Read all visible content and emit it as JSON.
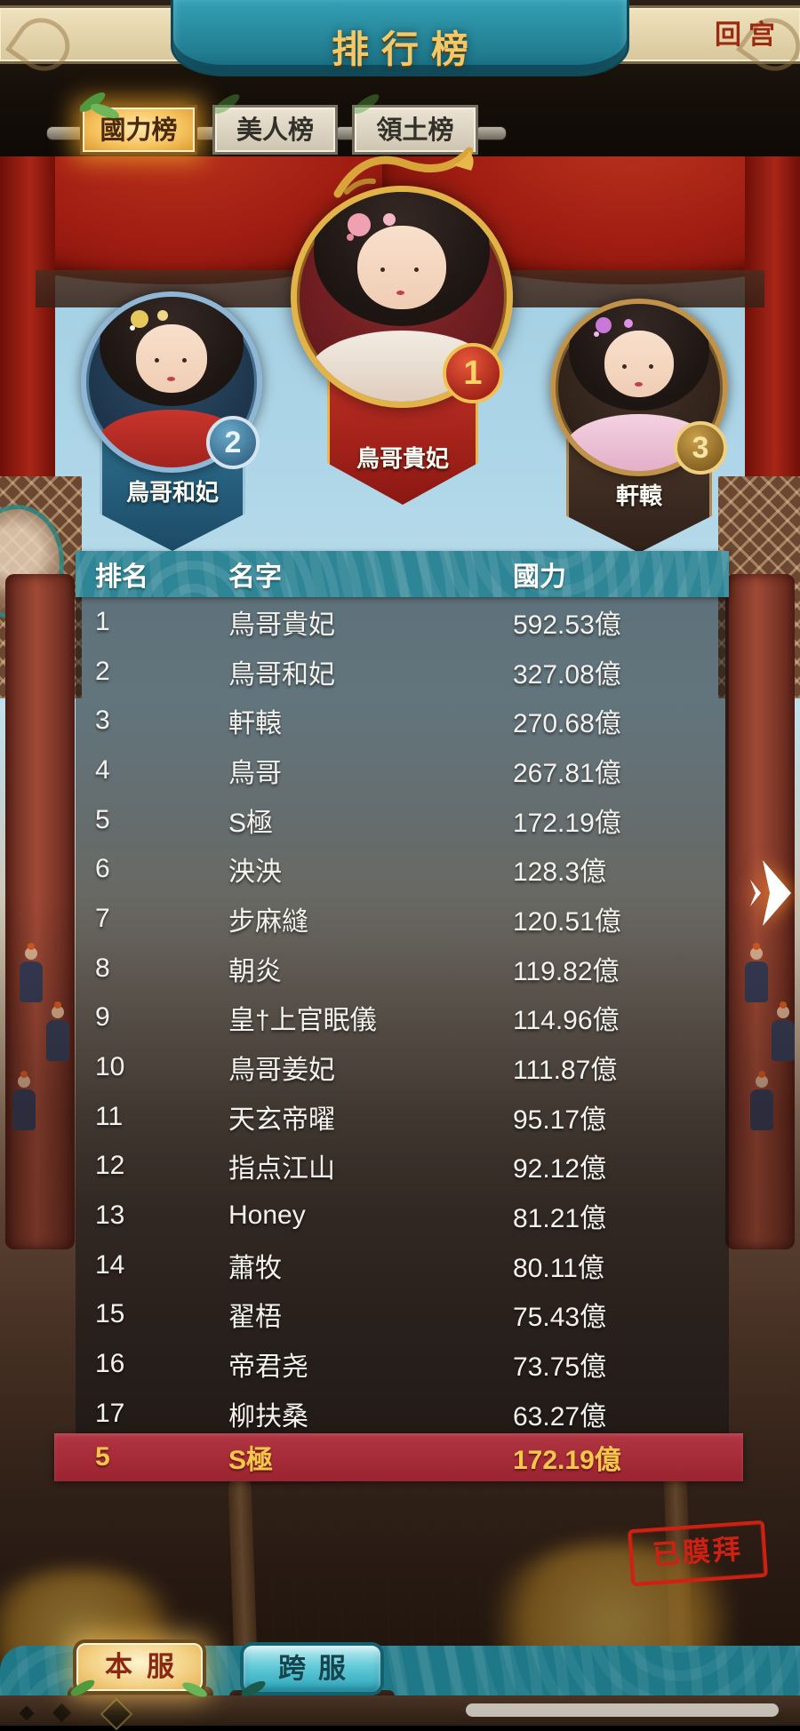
{
  "header": {
    "title": "排行榜",
    "back_button": "回宫"
  },
  "tabs": [
    {
      "label": "國力榜",
      "active": true
    },
    {
      "label": "美人榜",
      "active": false
    },
    {
      "label": "領土榜",
      "active": false
    }
  ],
  "podium": [
    {
      "rank": "1",
      "name": "鳥哥貴妃"
    },
    {
      "rank": "2",
      "name": "鳥哥和妃"
    },
    {
      "rank": "3",
      "name": "軒轅"
    }
  ],
  "table": {
    "columns": [
      "排名",
      "名字",
      "國力"
    ],
    "rows": [
      {
        "rank": "1",
        "name": "鳥哥貴妃",
        "power": "592.53億"
      },
      {
        "rank": "2",
        "name": "鳥哥和妃",
        "power": "327.08億"
      },
      {
        "rank": "3",
        "name": "軒轅",
        "power": "270.68億"
      },
      {
        "rank": "4",
        "name": "鳥哥",
        "power": "267.81億"
      },
      {
        "rank": "5",
        "name": "S極",
        "power": "172.19億"
      },
      {
        "rank": "6",
        "name": "泱泱",
        "power": "128.3億"
      },
      {
        "rank": "7",
        "name": "步麻縫",
        "power": "120.51億"
      },
      {
        "rank": "8",
        "name": "朝炎",
        "power": "119.82億"
      },
      {
        "rank": "9",
        "name": "皇†上官眠儀",
        "power": "114.96億"
      },
      {
        "rank": "10",
        "name": "鳥哥姜妃",
        "power": "111.87億"
      },
      {
        "rank": "11",
        "name": "天玄帝曜",
        "power": "95.17億"
      },
      {
        "rank": "12",
        "name": "指点江山",
        "power": "92.12億"
      },
      {
        "rank": "13",
        "name": "Honey",
        "power": "81.21億"
      },
      {
        "rank": "14",
        "name": "蕭牧",
        "power": "80.11億"
      },
      {
        "rank": "15",
        "name": "翟梧",
        "power": "75.43億"
      },
      {
        "rank": "16",
        "name": "帝君尧",
        "power": "73.75億"
      },
      {
        "rank": "17",
        "name": "柳扶桑",
        "power": "63.27億"
      }
    ]
  },
  "my_rank": {
    "rank": "5",
    "name": "S極",
    "power": "172.19億"
  },
  "stamp": "已膜拜",
  "bottom_tabs": [
    {
      "label": "本服",
      "active": true
    },
    {
      "label": "跨服",
      "active": false
    }
  ],
  "colors": {
    "accent_gold": "#f2c968",
    "banner_teal": "#2e8596",
    "highlight_red": "#a82a34",
    "highlight_text": "#f8c84a",
    "stamp_red": "#cf2012",
    "back_red": "#9c2a12",
    "active_tab_glow": "#f5aa28"
  }
}
